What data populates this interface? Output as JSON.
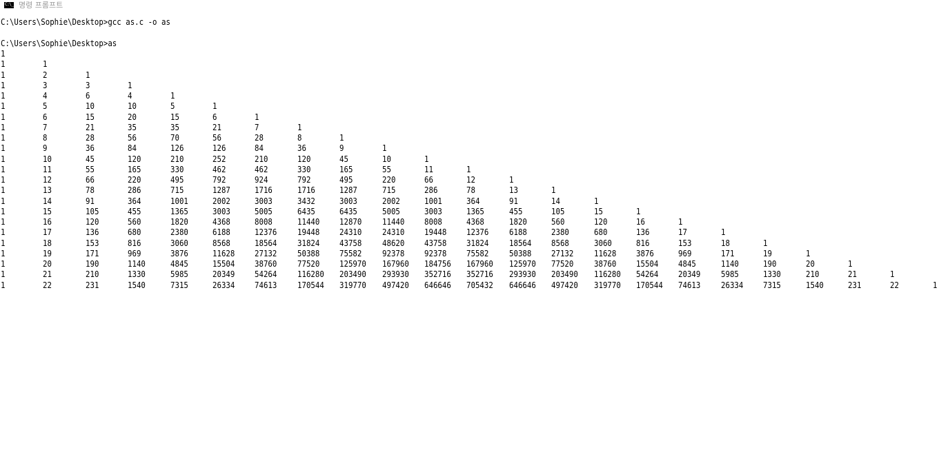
{
  "window": {
    "title": "명령 프롬프트",
    "icon": "command-prompt-icon",
    "icon_glyph": "C:\\_"
  },
  "console": {
    "lines": [
      "C:\\Users\\Sophie\\Desktop>gcc as.c -o as",
      "",
      "C:\\Users\\Sophie\\Desktop>as"
    ]
  },
  "output": {
    "rows": [
      [
        1
      ],
      [
        1,
        1
      ],
      [
        1,
        2,
        1
      ],
      [
        1,
        3,
        3,
        1
      ],
      [
        1,
        4,
        6,
        4,
        1
      ],
      [
        1,
        5,
        10,
        10,
        5,
        1
      ],
      [
        1,
        6,
        15,
        20,
        15,
        6,
        1
      ],
      [
        1,
        7,
        21,
        35,
        35,
        21,
        7,
        1
      ],
      [
        1,
        8,
        28,
        56,
        70,
        56,
        28,
        8,
        1
      ],
      [
        1,
        9,
        36,
        84,
        126,
        126,
        84,
        36,
        9,
        1
      ],
      [
        1,
        10,
        45,
        120,
        210,
        252,
        210,
        120,
        45,
        10,
        1
      ],
      [
        1,
        11,
        55,
        165,
        330,
        462,
        462,
        330,
        165,
        55,
        11,
        1
      ],
      [
        1,
        12,
        66,
        220,
        495,
        792,
        924,
        792,
        495,
        220,
        66,
        12,
        1
      ],
      [
        1,
        13,
        78,
        286,
        715,
        1287,
        1716,
        1716,
        1287,
        715,
        286,
        78,
        13,
        1
      ],
      [
        1,
        14,
        91,
        364,
        1001,
        2002,
        3003,
        3432,
        3003,
        2002,
        1001,
        364,
        91,
        14,
        1
      ],
      [
        1,
        15,
        105,
        455,
        1365,
        3003,
        5005,
        6435,
        6435,
        5005,
        3003,
        1365,
        455,
        105,
        15,
        1
      ],
      [
        1,
        16,
        120,
        560,
        1820,
        4368,
        8008,
        11440,
        12870,
        11440,
        8008,
        4368,
        1820,
        560,
        120,
        16,
        1
      ],
      [
        1,
        17,
        136,
        680,
        2380,
        6188,
        12376,
        19448,
        24310,
        24310,
        19448,
        12376,
        6188,
        2380,
        680,
        136,
        17,
        1
      ],
      [
        1,
        18,
        153,
        816,
        3060,
        8568,
        18564,
        31824,
        43758,
        48620,
        43758,
        31824,
        18564,
        8568,
        3060,
        816,
        153,
        18,
        1
      ],
      [
        1,
        19,
        171,
        969,
        3876,
        11628,
        27132,
        50388,
        75582,
        92378,
        92378,
        75582,
        50388,
        27132,
        11628,
        3876,
        969,
        171,
        19,
        1
      ],
      [
        1,
        20,
        190,
        1140,
        4845,
        15504,
        38760,
        77520,
        125970,
        167960,
        184756,
        167960,
        125970,
        77520,
        38760,
        15504,
        4845,
        1140,
        190,
        20,
        1
      ],
      [
        1,
        21,
        210,
        1330,
        5985,
        20349,
        54264,
        116280,
        203490,
        293930,
        352716,
        352716,
        293930,
        203490,
        116280,
        54264,
        20349,
        5985,
        1330,
        210,
        21,
        1
      ],
      [
        1,
        22,
        231,
        1540,
        7315,
        26334,
        74613,
        170544,
        319770,
        497420,
        646646,
        705432,
        646646,
        497420,
        319770,
        170544,
        74613,
        26334,
        7315,
        1540,
        231,
        22,
        1
      ]
    ]
  }
}
